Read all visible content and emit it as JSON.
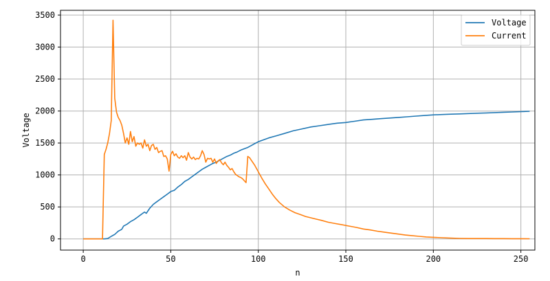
{
  "chart_data": {
    "type": "line",
    "title": "",
    "xlabel": "n",
    "ylabel": "Voltage",
    "xlim": [
      -13,
      258
    ],
    "ylim": [
      -175,
      3575
    ],
    "xticks": [
      0,
      50,
      100,
      150,
      200,
      250
    ],
    "yticks": [
      0,
      500,
      1000,
      1500,
      2000,
      2500,
      3000,
      3500
    ],
    "grid": true,
    "legend_position": "top-right",
    "series": [
      {
        "name": "Voltage",
        "color": "#1f77b4",
        "points": [
          [
            0,
            0
          ],
          [
            5,
            0
          ],
          [
            10,
            0
          ],
          [
            12,
            0
          ],
          [
            14,
            5
          ],
          [
            16,
            40
          ],
          [
            18,
            70
          ],
          [
            20,
            120
          ],
          [
            22,
            150
          ],
          [
            23,
            200
          ],
          [
            25,
            230
          ],
          [
            27,
            270
          ],
          [
            29,
            300
          ],
          [
            31,
            340
          ],
          [
            33,
            380
          ],
          [
            35,
            420
          ],
          [
            36,
            400
          ],
          [
            38,
            480
          ],
          [
            40,
            540
          ],
          [
            42,
            580
          ],
          [
            44,
            620
          ],
          [
            46,
            660
          ],
          [
            48,
            700
          ],
          [
            50,
            740
          ],
          [
            52,
            760
          ],
          [
            54,
            810
          ],
          [
            56,
            850
          ],
          [
            58,
            900
          ],
          [
            60,
            930
          ],
          [
            62,
            970
          ],
          [
            64,
            1010
          ],
          [
            66,
            1050
          ],
          [
            68,
            1090
          ],
          [
            70,
            1120
          ],
          [
            72,
            1150
          ],
          [
            74,
            1180
          ],
          [
            76,
            1200
          ],
          [
            78,
            1230
          ],
          [
            80,
            1260
          ],
          [
            82,
            1290
          ],
          [
            84,
            1310
          ],
          [
            86,
            1340
          ],
          [
            88,
            1360
          ],
          [
            90,
            1390
          ],
          [
            92,
            1410
          ],
          [
            94,
            1430
          ],
          [
            96,
            1460
          ],
          [
            98,
            1490
          ],
          [
            100,
            1520
          ],
          [
            103,
            1550
          ],
          [
            106,
            1580
          ],
          [
            110,
            1610
          ],
          [
            115,
            1650
          ],
          [
            120,
            1690
          ],
          [
            125,
            1720
          ],
          [
            130,
            1750
          ],
          [
            135,
            1770
          ],
          [
            140,
            1790
          ],
          [
            145,
            1810
          ],
          [
            150,
            1820
          ],
          [
            155,
            1840
          ],
          [
            160,
            1860
          ],
          [
            165,
            1870
          ],
          [
            170,
            1880
          ],
          [
            175,
            1890
          ],
          [
            180,
            1900
          ],
          [
            185,
            1910
          ],
          [
            190,
            1920
          ],
          [
            195,
            1930
          ],
          [
            200,
            1940
          ],
          [
            205,
            1945
          ],
          [
            210,
            1950
          ],
          [
            215,
            1955
          ],
          [
            220,
            1960
          ],
          [
            225,
            1965
          ],
          [
            230,
            1970
          ],
          [
            235,
            1975
          ],
          [
            240,
            1980
          ],
          [
            245,
            1985
          ],
          [
            250,
            1990
          ],
          [
            255,
            1995
          ]
        ]
      },
      {
        "name": "Current",
        "color": "#ff7f0e",
        "points": [
          [
            0,
            0
          ],
          [
            5,
            0
          ],
          [
            10,
            0
          ],
          [
            11,
            0
          ],
          [
            12,
            1320
          ],
          [
            13,
            1400
          ],
          [
            14,
            1500
          ],
          [
            15,
            1650
          ],
          [
            16,
            1850
          ],
          [
            17,
            3420
          ],
          [
            18,
            2200
          ],
          [
            19,
            1980
          ],
          [
            20,
            1900
          ],
          [
            21,
            1850
          ],
          [
            22,
            1780
          ],
          [
            23,
            1650
          ],
          [
            24,
            1500
          ],
          [
            25,
            1580
          ],
          [
            26,
            1480
          ],
          [
            27,
            1680
          ],
          [
            28,
            1520
          ],
          [
            29,
            1600
          ],
          [
            30,
            1450
          ],
          [
            31,
            1500
          ],
          [
            32,
            1480
          ],
          [
            33,
            1500
          ],
          [
            34,
            1420
          ],
          [
            35,
            1550
          ],
          [
            36,
            1450
          ],
          [
            37,
            1480
          ],
          [
            38,
            1380
          ],
          [
            39,
            1460
          ],
          [
            40,
            1480
          ],
          [
            41,
            1400
          ],
          [
            42,
            1430
          ],
          [
            43,
            1350
          ],
          [
            44,
            1370
          ],
          [
            45,
            1380
          ],
          [
            46,
            1290
          ],
          [
            47,
            1300
          ],
          [
            48,
            1250
          ],
          [
            49,
            1060
          ],
          [
            50,
            1320
          ],
          [
            51,
            1370
          ],
          [
            52,
            1300
          ],
          [
            53,
            1330
          ],
          [
            54,
            1280
          ],
          [
            55,
            1260
          ],
          [
            56,
            1300
          ],
          [
            57,
            1270
          ],
          [
            58,
            1300
          ],
          [
            59,
            1230
          ],
          [
            60,
            1350
          ],
          [
            61,
            1280
          ],
          [
            62,
            1250
          ],
          [
            63,
            1280
          ],
          [
            64,
            1240
          ],
          [
            65,
            1260
          ],
          [
            66,
            1250
          ],
          [
            67,
            1300
          ],
          [
            68,
            1380
          ],
          [
            69,
            1320
          ],
          [
            70,
            1200
          ],
          [
            71,
            1260
          ],
          [
            72,
            1250
          ],
          [
            73,
            1260
          ],
          [
            74,
            1200
          ],
          [
            75,
            1250
          ],
          [
            76,
            1180
          ],
          [
            77,
            1220
          ],
          [
            78,
            1240
          ],
          [
            79,
            1190
          ],
          [
            80,
            1160
          ],
          [
            81,
            1200
          ],
          [
            82,
            1150
          ],
          [
            83,
            1120
          ],
          [
            84,
            1080
          ],
          [
            85,
            1100
          ],
          [
            86,
            1050
          ],
          [
            87,
            1010
          ],
          [
            88,
            990
          ],
          [
            89,
            970
          ],
          [
            90,
            960
          ],
          [
            91,
            940
          ],
          [
            92,
            910
          ],
          [
            93,
            880
          ],
          [
            94,
            1290
          ],
          [
            95,
            1270
          ],
          [
            96,
            1230
          ],
          [
            97,
            1190
          ],
          [
            98,
            1150
          ],
          [
            100,
            1050
          ],
          [
            102,
            950
          ],
          [
            104,
            860
          ],
          [
            106,
            780
          ],
          [
            108,
            700
          ],
          [
            110,
            630
          ],
          [
            112,
            570
          ],
          [
            115,
            500
          ],
          [
            118,
            450
          ],
          [
            121,
            410
          ],
          [
            124,
            380
          ],
          [
            127,
            350
          ],
          [
            130,
            330
          ],
          [
            133,
            310
          ],
          [
            136,
            290
          ],
          [
            140,
            260
          ],
          [
            144,
            240
          ],
          [
            148,
            220
          ],
          [
            152,
            200
          ],
          [
            156,
            180
          ],
          [
            160,
            155
          ],
          [
            164,
            140
          ],
          [
            168,
            120
          ],
          [
            172,
            105
          ],
          [
            176,
            90
          ],
          [
            180,
            75
          ],
          [
            184,
            60
          ],
          [
            188,
            50
          ],
          [
            192,
            40
          ],
          [
            196,
            30
          ],
          [
            200,
            25
          ],
          [
            205,
            18
          ],
          [
            210,
            12
          ],
          [
            215,
            8
          ],
          [
            220,
            6
          ],
          [
            225,
            5
          ],
          [
            230,
            5
          ],
          [
            235,
            4
          ],
          [
            240,
            4
          ],
          [
            245,
            3
          ],
          [
            250,
            3
          ],
          [
            255,
            2
          ]
        ]
      }
    ]
  }
}
